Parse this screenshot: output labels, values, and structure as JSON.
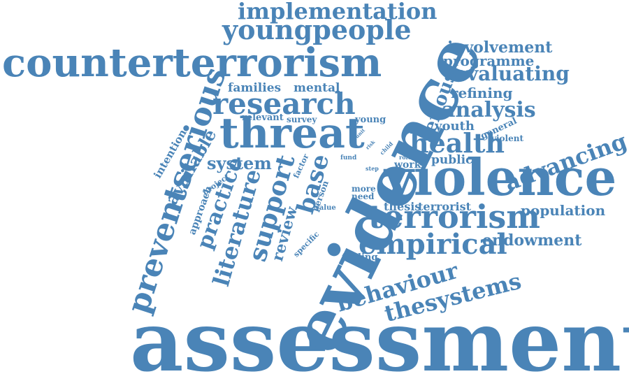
{
  "colors": {
    "word": "#4a84b7",
    "background": "#ffffff"
  },
  "words": {
    "assessment": "assessment",
    "evidence": "evidence",
    "violence": "violence",
    "counterterrorism": "counterterrorism",
    "threat": "threat",
    "research": "research",
    "terrorism": "terrorism",
    "preventserious": "preventserious",
    "youngpeople": "youngpeople",
    "implementation": "implementation",
    "empirical": "empirical",
    "behaviour": "behaviour",
    "thesystems": "thesystems",
    "health": "health",
    "analysis": "analysis",
    "advancing": "advancing",
    "evaluating": "evaluating",
    "involvement": "involvement",
    "programme": "programme",
    "refining": "refining",
    "serious": "serious",
    "youth": "youth",
    "public": "public",
    "population": "population",
    "endowment": "endowment",
    "support": "support",
    "literature": "literature",
    "practice": "practice",
    "base": "base",
    "review": "review",
    "system": "system",
    "available": "available",
    "approach": "approach",
    "intention": "intention",
    "families": "families",
    "mental": "mental",
    "relevant": "relevant",
    "survey": "survey",
    "young": "young",
    "thesis": "thesis",
    "terrorist": "terrorist",
    "work": "work",
    "general": "general",
    "violent": "violent",
    "project": "project",
    "factor": "factor",
    "person": "person",
    "value": "value",
    "specific": "specific",
    "finding": "finding",
    "more": "more",
    "need": "need",
    "fund": "fund",
    "step": "step",
    "role": "role",
    "child": "child",
    "unit": "unit",
    "risk": "risk"
  }
}
